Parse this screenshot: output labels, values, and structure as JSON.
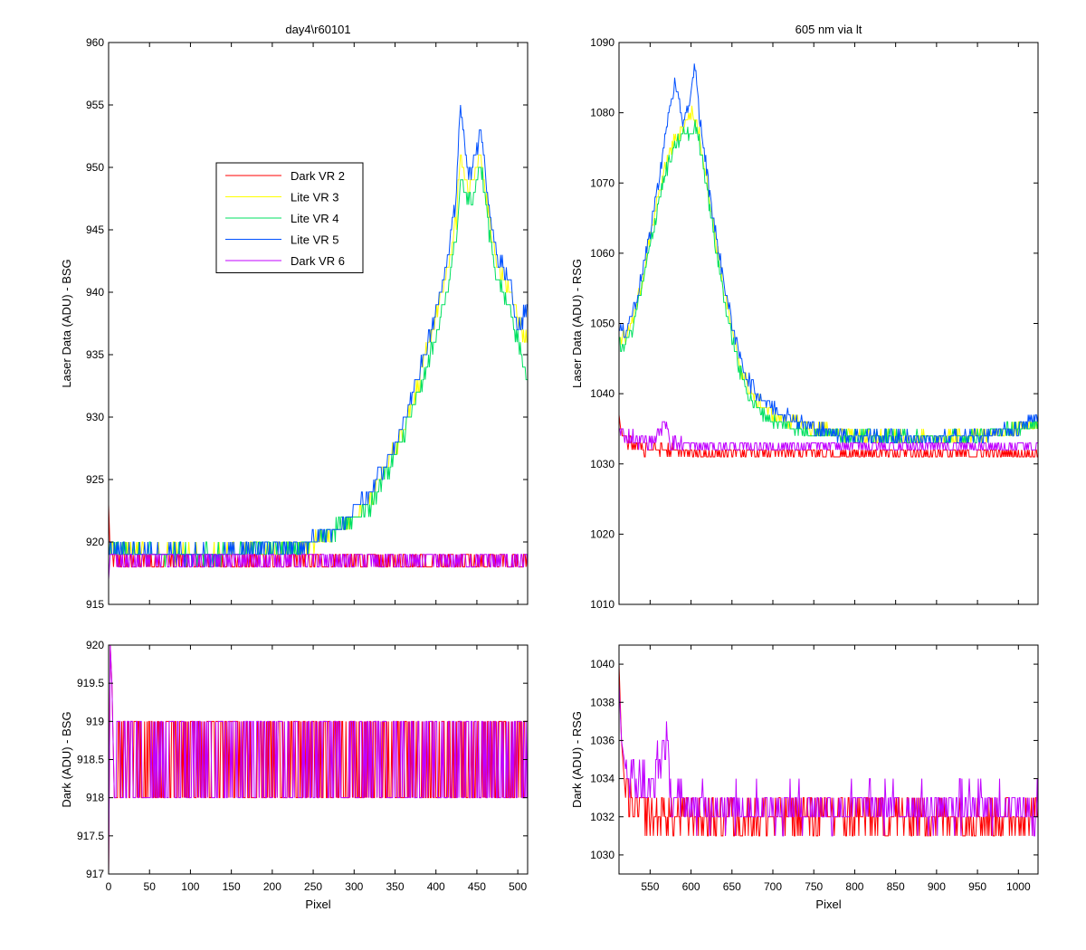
{
  "figure": {
    "background": "#ffffff"
  },
  "chart_data": [
    {
      "id": "top_left",
      "type": "line",
      "title": "day4\\r60101",
      "xlabel": "",
      "ylabel": "Laser Data (ADU) - BSG",
      "xlim": [
        0,
        512
      ],
      "ylim": [
        915,
        960
      ],
      "xticks": [
        0,
        50,
        100,
        150,
        200,
        250,
        300,
        350,
        400,
        450,
        500
      ],
      "xtick_labels_shown": false,
      "yticks": [
        915,
        920,
        925,
        930,
        935,
        940,
        945,
        950,
        955,
        960
      ],
      "legend": {
        "placement": "upper-left-inside"
      },
      "series": [
        {
          "name": "Dark VR 2",
          "color": "#ff0000",
          "x": [
            0,
            2,
            5,
            30,
            100,
            200,
            300,
            400,
            450,
            512
          ],
          "y": [
            923,
            919,
            918.5,
            918.5,
            918.5,
            918.5,
            918.5,
            918.5,
            918.5,
            918.5
          ]
        },
        {
          "name": "Lite VR 3",
          "color": "#ffff00",
          "x": [
            0,
            50,
            100,
            150,
            180,
            220,
            250,
            280,
            300,
            320,
            340,
            360,
            380,
            400,
            415,
            425,
            430,
            440,
            455,
            465,
            475,
            490,
            500,
            512
          ],
          "y": [
            919.5,
            919,
            919,
            919,
            919.5,
            919.5,
            920,
            921,
            922,
            923.5,
            926,
            929,
            933,
            938,
            942,
            946,
            951,
            948,
            951,
            946,
            942,
            940,
            938,
            936
          ]
        },
        {
          "name": "Lite VR 4",
          "color": "#00e060",
          "x": [
            0,
            50,
            100,
            150,
            180,
            220,
            250,
            280,
            300,
            320,
            340,
            360,
            380,
            400,
            415,
            425,
            430,
            440,
            455,
            465,
            475,
            490,
            500,
            512
          ],
          "y": [
            919.5,
            919,
            919,
            919,
            919.5,
            919.5,
            920,
            921,
            922,
            923,
            925.5,
            928.5,
            932,
            936.5,
            940.5,
            944,
            949,
            947,
            950,
            945,
            941,
            939,
            936,
            933
          ]
        },
        {
          "name": "Lite VR 5",
          "color": "#0050ff",
          "x": [
            0,
            50,
            100,
            150,
            180,
            220,
            250,
            280,
            300,
            320,
            340,
            360,
            380,
            400,
            415,
            425,
            430,
            440,
            455,
            465,
            475,
            490,
            500,
            512
          ],
          "y": [
            919.5,
            919,
            919,
            919,
            919.5,
            919.5,
            920,
            921,
            922.5,
            924,
            926.5,
            929.5,
            933.5,
            938.5,
            943,
            948,
            955,
            949,
            953,
            947,
            943,
            941,
            937,
            939
          ]
        },
        {
          "name": "Dark VR 6",
          "color": "#c000ff",
          "x": [
            0,
            2,
            5,
            30,
            100,
            200,
            300,
            400,
            450,
            512
          ],
          "y": [
            917,
            919,
            918.5,
            918.5,
            918.5,
            918.5,
            918.5,
            918.5,
            918.5,
            918.5
          ]
        }
      ]
    },
    {
      "id": "top_right",
      "type": "line",
      "title": "605 nm via lt",
      "xlabel": "",
      "ylabel": "Laser Data (ADU) - RSG",
      "xlim": [
        512,
        1024
      ],
      "ylim": [
        1010,
        1090
      ],
      "xticks": [
        550,
        600,
        650,
        700,
        750,
        800,
        850,
        900,
        950,
        1000
      ],
      "xtick_labels_shown": false,
      "yticks": [
        1010,
        1020,
        1030,
        1040,
        1050,
        1060,
        1070,
        1080,
        1090
      ],
      "series": [
        {
          "name": "Dark VR 2",
          "color": "#ff0000",
          "x": [
            512,
            520,
            550,
            600,
            700,
            800,
            900,
            1024
          ],
          "y": [
            1036,
            1033,
            1032,
            1031.5,
            1031.5,
            1031.5,
            1031.5,
            1031.5
          ]
        },
        {
          "name": "Lite VR 3",
          "color": "#ffff00",
          "x": [
            512,
            520,
            530,
            540,
            550,
            560,
            570,
            580,
            590,
            600,
            605,
            610,
            620,
            630,
            640,
            650,
            660,
            670,
            680,
            700,
            750,
            800,
            900,
            950,
            1000,
            1024
          ],
          "y": [
            1048,
            1048,
            1051,
            1056,
            1062,
            1068,
            1073,
            1076,
            1078,
            1080,
            1079,
            1077,
            1070,
            1062,
            1055,
            1049,
            1044,
            1041,
            1039,
            1037,
            1035,
            1034,
            1033.5,
            1034,
            1035,
            1036
          ]
        },
        {
          "name": "Lite VR 4",
          "color": "#00e060",
          "x": [
            512,
            520,
            530,
            540,
            550,
            560,
            570,
            580,
            590,
            600,
            605,
            610,
            620,
            630,
            640,
            650,
            660,
            670,
            680,
            700,
            750,
            800,
            900,
            950,
            1000,
            1024
          ],
          "y": [
            1047,
            1047,
            1050,
            1055,
            1061,
            1067,
            1072,
            1075,
            1077,
            1077,
            1078,
            1076,
            1069,
            1061,
            1054,
            1048,
            1043,
            1040,
            1038,
            1036,
            1034.5,
            1034,
            1033.5,
            1034,
            1035,
            1036
          ]
        },
        {
          "name": "Lite VR 5",
          "color": "#0050ff",
          "x": [
            512,
            520,
            530,
            540,
            550,
            560,
            570,
            580,
            590,
            600,
            605,
            610,
            620,
            630,
            640,
            650,
            660,
            670,
            680,
            700,
            750,
            800,
            900,
            950,
            1000,
            1024
          ],
          "y": [
            1049,
            1049,
            1052,
            1057,
            1063,
            1070,
            1078,
            1084,
            1079,
            1082,
            1087,
            1080,
            1071,
            1063,
            1056,
            1050,
            1045,
            1042,
            1040,
            1038,
            1035,
            1034,
            1033.5,
            1034,
            1035,
            1037
          ]
        },
        {
          "name": "Dark VR 6",
          "color": "#c000ff",
          "x": [
            512,
            520,
            550,
            570,
            575,
            600,
            700,
            800,
            900,
            1024
          ],
          "y": [
            1035,
            1034,
            1033,
            1036,
            1033,
            1032.5,
            1032.5,
            1032.5,
            1032.5,
            1032.5
          ]
        }
      ]
    },
    {
      "id": "bottom_left",
      "type": "line",
      "title": "",
      "xlabel": "Pixel",
      "ylabel": "Dark (ADU) - BSG",
      "xlim": [
        0,
        512
      ],
      "ylim": [
        917,
        920
      ],
      "xticks": [
        0,
        50,
        100,
        150,
        200,
        250,
        300,
        350,
        400,
        450,
        500
      ],
      "xtick_labels_shown": true,
      "yticks": [
        917,
        917.5,
        918,
        918.5,
        919,
        919.5,
        920
      ],
      "series": [
        {
          "name": "Dark VR 2",
          "color": "#ff0000",
          "x": [
            0,
            2,
            4,
            6,
            512
          ],
          "y": [
            917,
            920,
            919.5,
            918.5,
            918.5
          ]
        },
        {
          "name": "Dark VR 6",
          "color": "#c000ff",
          "x": [
            0,
            2,
            4,
            6,
            512
          ],
          "y": [
            917,
            920,
            919.5,
            918.5,
            918.5
          ]
        }
      ]
    },
    {
      "id": "bottom_right",
      "type": "line",
      "title": "",
      "xlabel": "Pixel",
      "ylabel": "Dark (ADU) - RSG",
      "xlim": [
        512,
        1024
      ],
      "ylim": [
        1029,
        1041
      ],
      "xticks": [
        550,
        600,
        650,
        700,
        750,
        800,
        850,
        900,
        950,
        1000
      ],
      "xtick_labels_shown": true,
      "yticks": [
        1030,
        1032,
        1034,
        1036,
        1038,
        1040
      ],
      "series": [
        {
          "name": "Dark VR 2",
          "color": "#ff0000",
          "x": [
            512,
            515,
            520,
            530,
            550,
            600,
            700,
            800,
            900,
            1000,
            1024
          ],
          "y": [
            1040,
            1036,
            1033,
            1032.5,
            1032,
            1032,
            1032,
            1032,
            1032,
            1032,
            1032
          ]
        },
        {
          "name": "Dark VR 6",
          "color": "#c000ff",
          "x": [
            512,
            515,
            520,
            530,
            550,
            570,
            575,
            600,
            700,
            800,
            900,
            1000,
            1024
          ],
          "y": [
            1039,
            1036,
            1034.5,
            1034,
            1033.5,
            1036,
            1033,
            1032.5,
            1032.5,
            1032.5,
            1032.5,
            1032.5,
            1032.5
          ]
        }
      ]
    }
  ]
}
